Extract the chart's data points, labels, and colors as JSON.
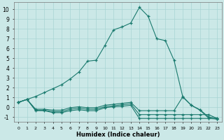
{
  "xlabel": "Humidex (Indice chaleur)",
  "bg_color": "#cbe8e7",
  "grid_color": "#a8d5d3",
  "line_color": "#1a7a6e",
  "xlim": [
    -0.5,
    23.5
  ],
  "ylim": [
    -1.5,
    10.7
  ],
  "xtick_labels": [
    "0",
    "1",
    "2",
    "3",
    "4",
    "5",
    "6",
    "7",
    "8",
    "9",
    "10",
    "11",
    "12",
    "13",
    "14",
    "15",
    "16",
    "17",
    "18",
    "19",
    "20",
    "21",
    "22",
    "23"
  ],
  "ytick_labels": [
    "-1",
    "0",
    "1",
    "2",
    "3",
    "4",
    "5",
    "6",
    "7",
    "8",
    "9",
    "10"
  ],
  "ytick_vals": [
    -1,
    0,
    1,
    2,
    3,
    4,
    5,
    6,
    7,
    8,
    9,
    10
  ],
  "main_x": [
    0,
    1,
    2,
    3,
    4,
    5,
    6,
    7,
    8,
    9,
    10,
    11,
    12,
    13,
    14,
    15,
    16,
    17,
    18,
    19,
    20,
    21,
    22,
    23
  ],
  "main_y": [
    0.5,
    0.8,
    1.1,
    1.5,
    1.9,
    2.3,
    2.9,
    3.6,
    4.7,
    4.8,
    6.3,
    7.9,
    8.2,
    8.6,
    10.2,
    9.3,
    7.0,
    6.8,
    4.8,
    1.1,
    0.2,
    -0.3,
    -1.1,
    -1.2
  ],
  "flat1_x": [
    0,
    1,
    2,
    3,
    4,
    5,
    6,
    7,
    8,
    9,
    10,
    11,
    12,
    13,
    14,
    15,
    16,
    17,
    18,
    19,
    20,
    21,
    22,
    23
  ],
  "flat1_y": [
    0.5,
    0.8,
    -0.35,
    -0.35,
    -0.55,
    -0.55,
    -0.35,
    -0.25,
    -0.35,
    -0.35,
    -0.05,
    0.05,
    0.1,
    0.2,
    -1.15,
    -1.15,
    -1.15,
    -1.15,
    -1.15,
    -1.15,
    -1.15,
    -1.15,
    -1.15,
    -1.2
  ],
  "flat2_x": [
    0,
    1,
    2,
    3,
    4,
    5,
    6,
    7,
    8,
    9,
    10,
    11,
    12,
    13,
    14,
    15,
    16,
    17,
    18,
    19,
    20,
    21,
    22,
    23
  ],
  "flat2_y": [
    0.5,
    0.8,
    -0.3,
    -0.3,
    -0.45,
    -0.45,
    -0.2,
    -0.1,
    -0.2,
    -0.2,
    0.05,
    0.15,
    0.25,
    0.35,
    -0.75,
    -0.75,
    -0.75,
    -0.75,
    -0.75,
    -0.75,
    -0.75,
    -0.75,
    -0.75,
    -1.15
  ],
  "flat3_x": [
    0,
    1,
    2,
    3,
    4,
    5,
    6,
    7,
    8,
    9,
    10,
    11,
    12,
    13,
    14,
    15,
    16,
    17,
    18,
    19,
    20,
    21,
    22,
    23
  ],
  "flat3_y": [
    0.5,
    0.8,
    -0.2,
    -0.2,
    -0.3,
    -0.3,
    -0.05,
    0.05,
    -0.05,
    -0.05,
    0.2,
    0.3,
    0.4,
    0.5,
    -0.35,
    -0.35,
    -0.35,
    -0.35,
    -0.35,
    1.05,
    0.2,
    -0.25,
    -1.0,
    -1.1
  ]
}
